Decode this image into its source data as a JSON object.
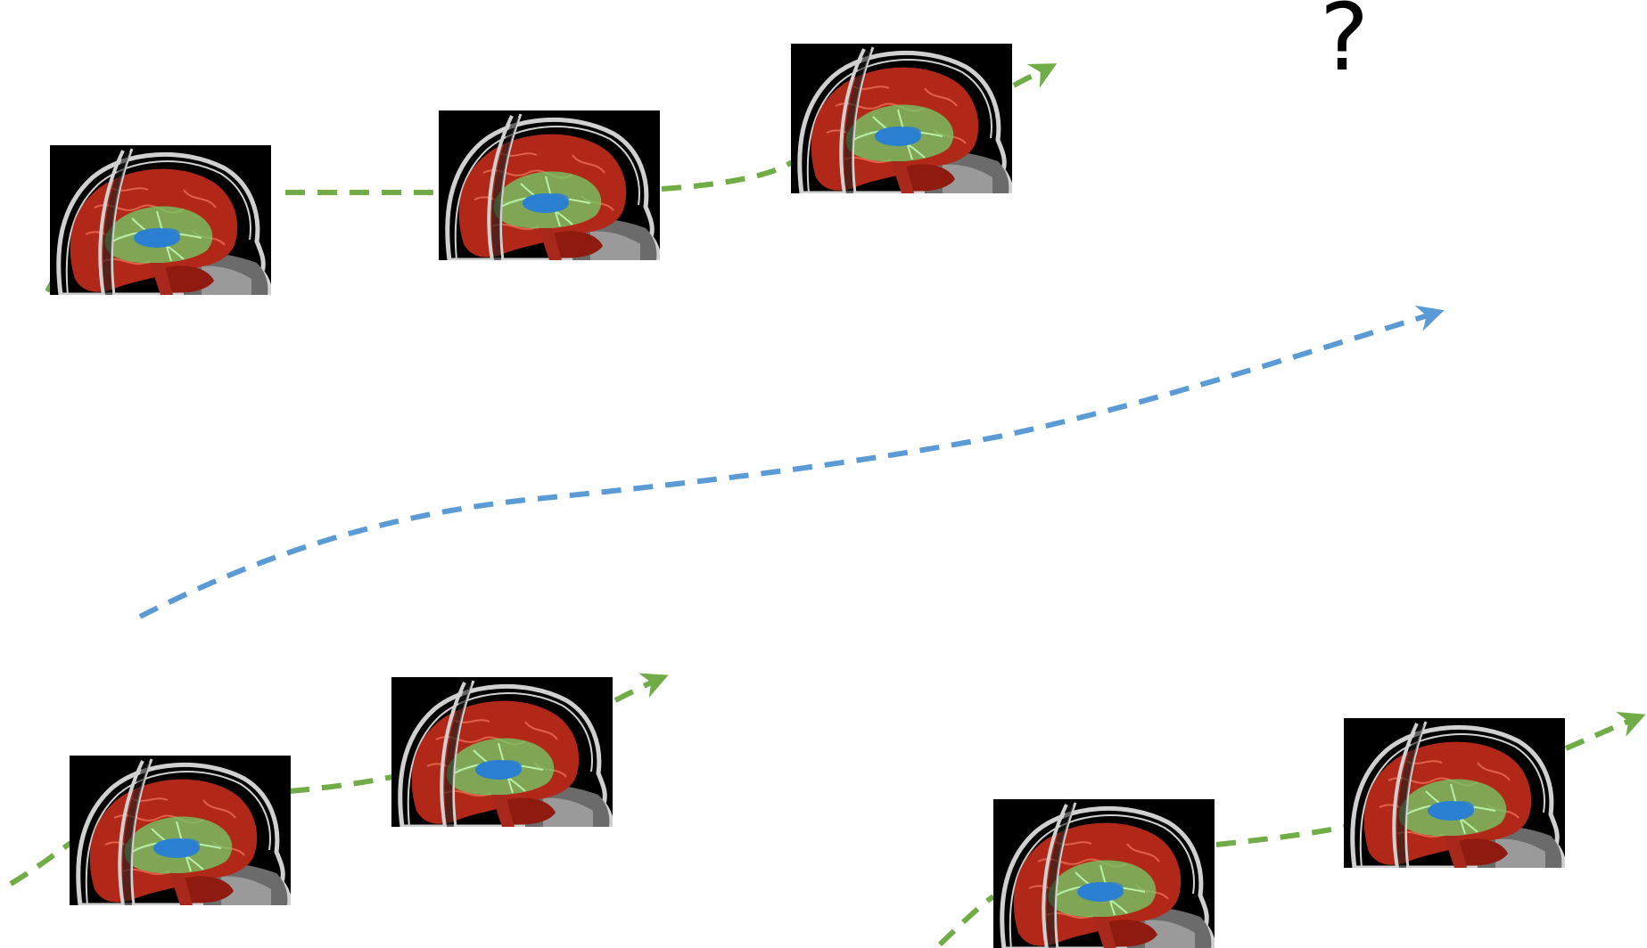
{
  "unknown_marker": "?",
  "colors": {
    "subject_trajectory": "#70ad47",
    "population_trajectory": "#5b9bd5",
    "scan_background": "#000000",
    "cortex": "#b22818",
    "white_matter": "#6fd06a",
    "ventricles": "#2a7fd0",
    "skull": "#d0d0d0"
  },
  "trajectories": [
    {
      "name": "subject-1-trajectory",
      "kind": "subject",
      "scans": 3
    },
    {
      "name": "subject-2-trajectory",
      "kind": "subject",
      "scans": 2
    },
    {
      "name": "subject-3-trajectory",
      "kind": "subject",
      "scans": 2
    },
    {
      "name": "population-trajectory",
      "kind": "population",
      "scans": 0
    }
  ],
  "scan_icon": "sagittal-brain-mri-icon"
}
